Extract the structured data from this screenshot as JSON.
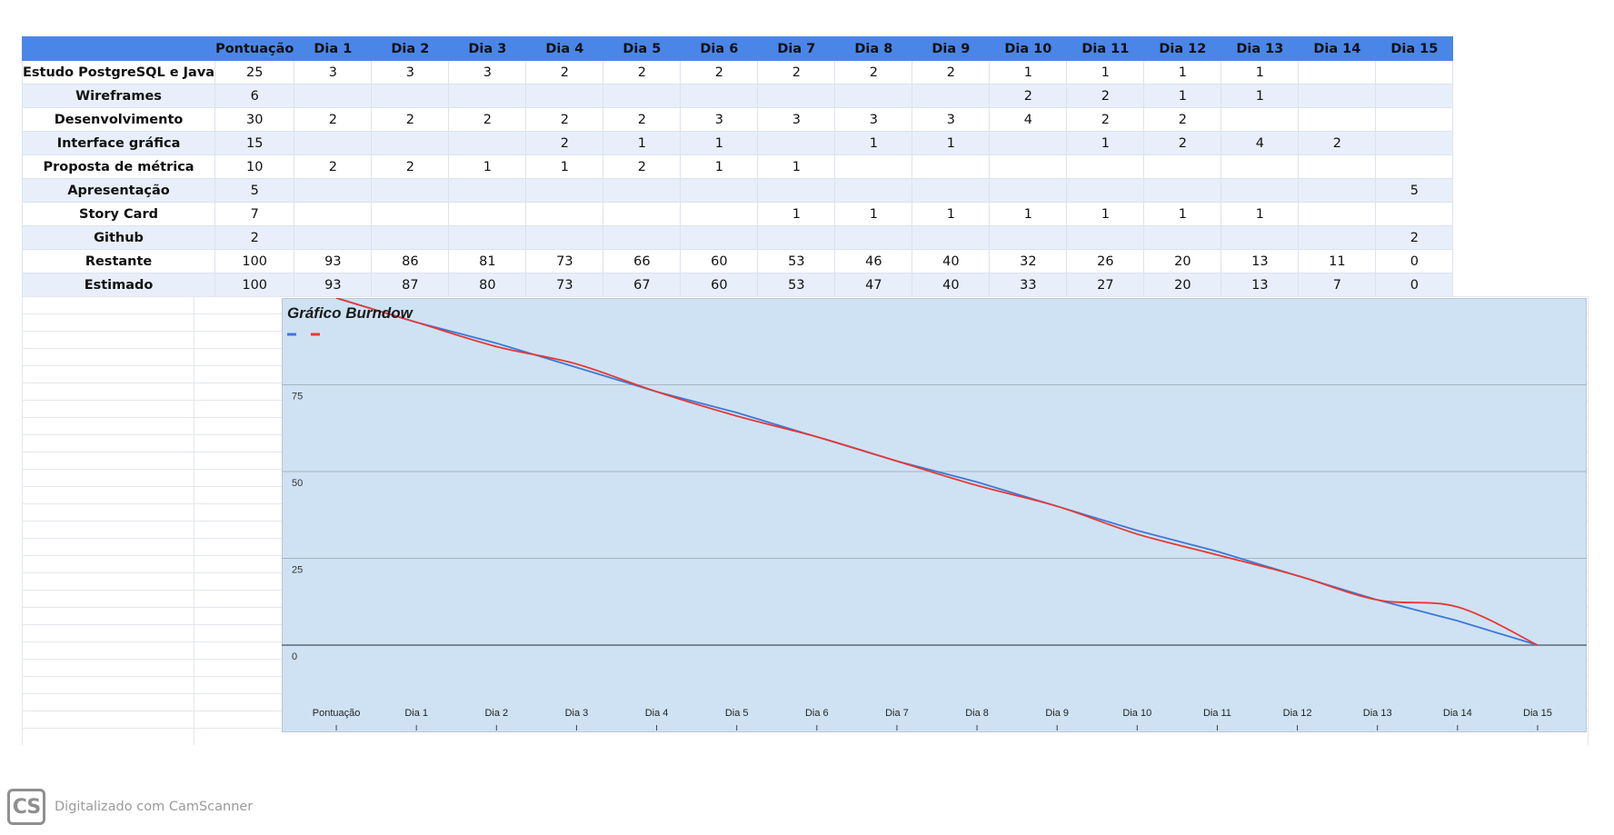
{
  "table": {
    "columns": [
      "",
      "Pontuação",
      "Dia 1",
      "Dia 2",
      "Dia 3",
      "Dia 4",
      "Dia 5",
      "Dia 6",
      "Dia 7",
      "Dia 8",
      "Dia 9",
      "Dia 10",
      "Dia 11",
      "Dia 12",
      "Dia 13",
      "Dia 14",
      "Dia 15"
    ],
    "rows": [
      {
        "label": "Estudo PostgreSQL e Java",
        "cells": [
          "25",
          "3",
          "3",
          "3",
          "2",
          "2",
          "2",
          "2",
          "2",
          "2",
          "1",
          "1",
          "1",
          "1",
          "",
          ""
        ]
      },
      {
        "label": "Wireframes",
        "cells": [
          "6",
          "",
          "",
          "",
          "",
          "",
          "",
          "",
          "",
          "",
          "2",
          "2",
          "1",
          "1",
          "",
          ""
        ]
      },
      {
        "label": "Desenvolvimento",
        "cells": [
          "30",
          "2",
          "2",
          "2",
          "2",
          "2",
          "3",
          "3",
          "3",
          "3",
          "4",
          "2",
          "2",
          "",
          "",
          ""
        ]
      },
      {
        "label": "Interface gráfica",
        "cells": [
          "15",
          "",
          "",
          "",
          "2",
          "1",
          "1",
          "",
          "1",
          "1",
          "",
          "1",
          "2",
          "4",
          "2",
          ""
        ]
      },
      {
        "label": "Proposta de métrica",
        "cells": [
          "10",
          "2",
          "2",
          "1",
          "1",
          "2",
          "1",
          "1",
          "",
          "",
          "",
          "",
          "",
          "",
          "",
          ""
        ]
      },
      {
        "label": "Apresentação",
        "cells": [
          "5",
          "",
          "",
          "",
          "",
          "",
          "",
          "",
          "",
          "",
          "",
          "",
          "",
          "",
          "",
          "5"
        ]
      },
      {
        "label": "Story Card",
        "cells": [
          "7",
          "",
          "",
          "",
          "",
          "",
          "",
          "1",
          "1",
          "1",
          "1",
          "1",
          "1",
          "1",
          "",
          ""
        ]
      },
      {
        "label": "Github",
        "cells": [
          "2",
          "",
          "",
          "",
          "",
          "",
          "",
          "",
          "",
          "",
          "",
          "",
          "",
          "",
          "",
          "2"
        ]
      },
      {
        "label": "Restante",
        "cells": [
          "100",
          "93",
          "86",
          "81",
          "73",
          "66",
          "60",
          "53",
          "46",
          "40",
          "32",
          "26",
          "20",
          "13",
          "11",
          "0"
        ]
      },
      {
        "label": "Estimado",
        "cells": [
          "100",
          "93",
          "87",
          "80",
          "73",
          "67",
          "60",
          "53",
          "47",
          "40",
          "33",
          "27",
          "20",
          "13",
          "7",
          "0"
        ]
      }
    ]
  },
  "chart_data": {
    "type": "line",
    "title": "Gráfico Burndow",
    "categories": [
      "Pontuação",
      "Dia 1",
      "Dia 2",
      "Dia 3",
      "Dia 4",
      "Dia 5",
      "Dia 6",
      "Dia 7",
      "Dia 8",
      "Dia 9",
      "Dia 10",
      "Dia 11",
      "Dia 12",
      "Dia 13",
      "Dia 14",
      "Dia 15"
    ],
    "series": [
      {
        "color": "#3c78d8",
        "values": [
          100,
          93,
          87,
          80,
          73,
          67,
          60,
          53,
          47,
          40,
          33,
          27,
          20,
          13,
          7,
          0
        ]
      },
      {
        "color": "#e53935",
        "values": [
          100,
          93,
          86,
          81,
          73,
          66,
          60,
          53,
          46,
          40,
          32,
          26,
          20,
          13,
          11,
          0
        ]
      }
    ],
    "yticks": [
      "0",
      "25",
      "50",
      "75"
    ],
    "ylim": [
      -20,
      100
    ],
    "legend": "top-left",
    "grid": true,
    "background": "#cfe2f3"
  },
  "watermark": {
    "logo": "CS",
    "text": "Digitalizado com CamScanner"
  }
}
